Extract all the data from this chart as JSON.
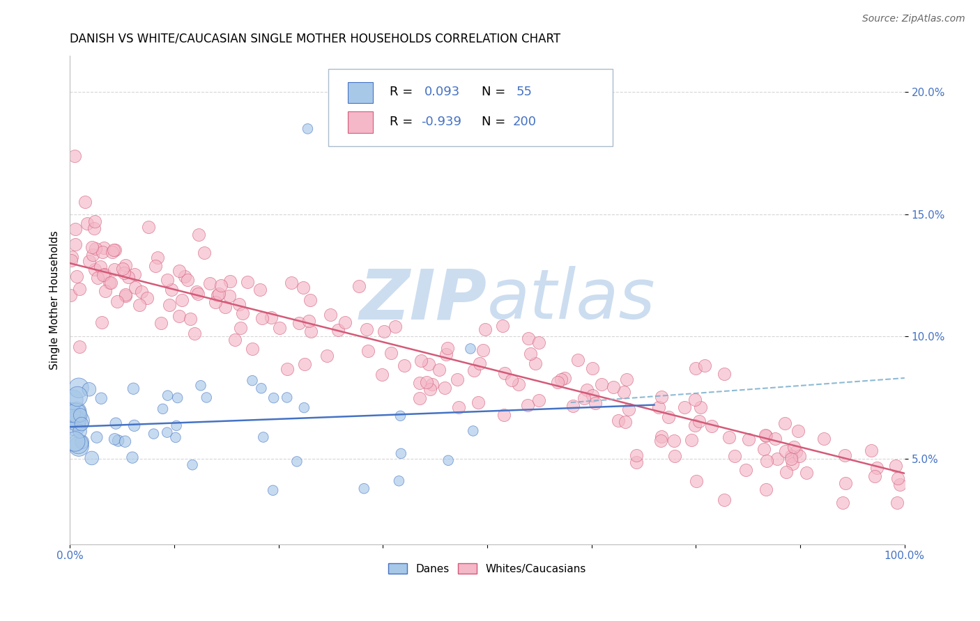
{
  "title": "DANISH VS WHITE/CAUCASIAN SINGLE MOTHER HOUSEHOLDS CORRELATION CHART",
  "source_text": "Source: ZipAtlas.com",
  "ylabel": "Single Mother Households",
  "y_ticks": [
    0.05,
    0.1,
    0.15,
    0.2
  ],
  "y_tick_labels": [
    "5.0%",
    "10.0%",
    "15.0%",
    "20.0%"
  ],
  "xlim": [
    0.0,
    1.0
  ],
  "ylim": [
    0.015,
    0.215
  ],
  "danes_R": "0.093",
  "danes_N": "55",
  "whites_R": "-0.939",
  "whites_N": "200",
  "legend_label_danes": "Danes",
  "legend_label_whites": "Whites/Caucasians",
  "color_danes": "#a8c8e8",
  "color_whites": "#f4b8c8",
  "color_danes_line": "#4472c4",
  "color_whites_line": "#d45a78",
  "color_dashed_line": "#7aaecc",
  "watermark_zip": "ZIP",
  "watermark_atlas": "atlas",
  "watermark_color": "#ccddf0",
  "title_fontsize": 12,
  "source_fontsize": 10,
  "tick_label_color": "#4472c4",
  "grid_color": "#cccccc",
  "background_color": "#ffffff",
  "legend_box_color": "#e8eef8",
  "legend_border_color": "#aabbcc"
}
